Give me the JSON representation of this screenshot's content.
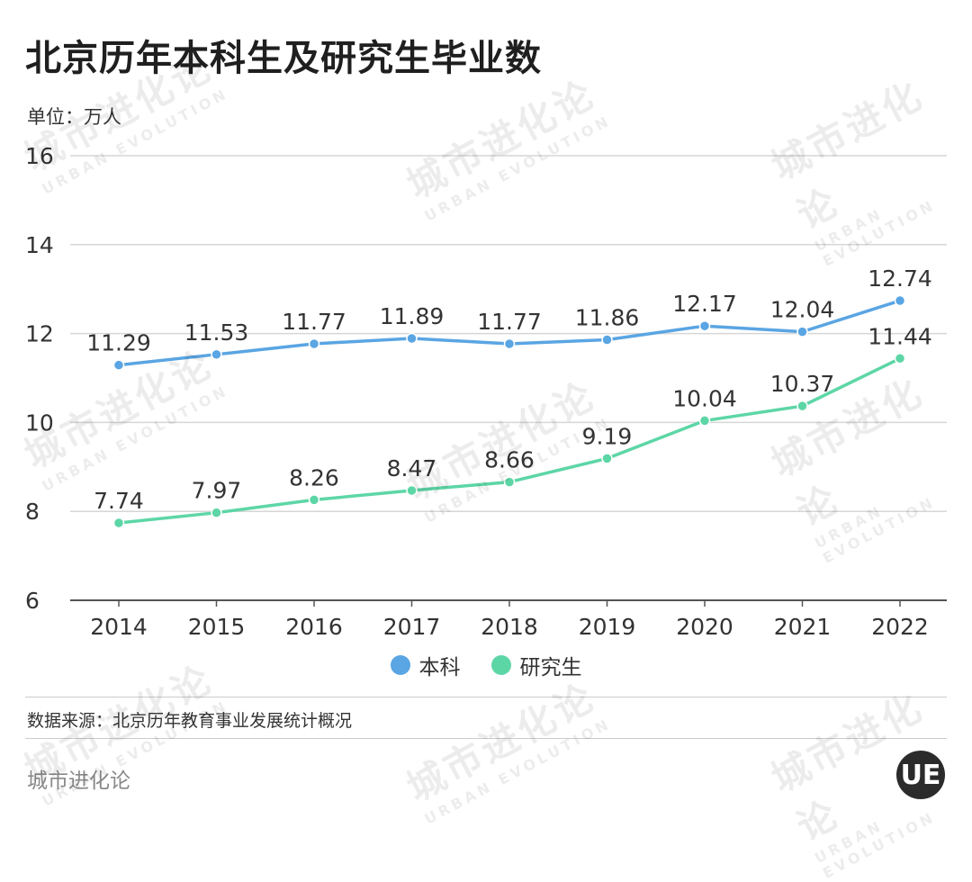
{
  "header": {
    "title": "北京历年本科生及研究生毕业数",
    "unit": "单位：万人"
  },
  "footer": {
    "source": "数据来源：北京历年教育事业发展统计概况",
    "brand": "城市进化论",
    "logo_text": "UE"
  },
  "watermark": {
    "cn": "城市进化论",
    "en": "URBAN EVOLUTION"
  },
  "colors": {
    "undergrad": "#5aa5e3",
    "graduate": "#5dd6a6",
    "grid": "#d6d6d6",
    "axis": "#555555",
    "text": "#333333"
  },
  "chart_data": {
    "type": "line",
    "title": "北京历年本科生及研究生毕业数",
    "ylabel": "单位：万人",
    "ylim": [
      6,
      16
    ],
    "yticks": [
      6,
      8,
      10,
      12,
      14,
      16
    ],
    "grid": true,
    "legend_position": "bottom-center",
    "categories": [
      "2014",
      "2015",
      "2016",
      "2017",
      "2018",
      "2019",
      "2020",
      "2021",
      "2022"
    ],
    "series": [
      {
        "name": "本科",
        "color": "#5aa5e3",
        "values": [
          11.29,
          11.53,
          11.77,
          11.89,
          11.77,
          11.86,
          12.17,
          12.04,
          12.74
        ],
        "labels": [
          "11.29",
          "11.53",
          "11.77",
          "11.89",
          "11.77",
          "11.86",
          "12.17",
          "12.04",
          "12.74"
        ]
      },
      {
        "name": "研究生",
        "color": "#5dd6a6",
        "values": [
          7.74,
          7.97,
          8.26,
          8.47,
          8.66,
          9.19,
          10.04,
          10.37,
          11.44
        ],
        "labels": [
          "7.74",
          "7.97",
          "8.26",
          "8.47",
          "8.66",
          "9.19",
          "10.04",
          "10.37",
          "11.44"
        ]
      }
    ]
  }
}
